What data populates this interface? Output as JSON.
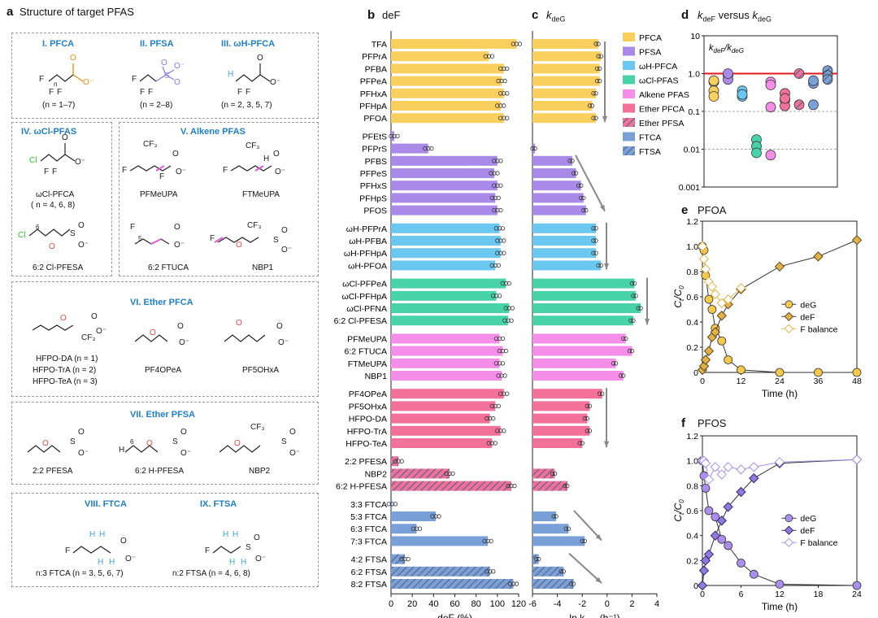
{
  "panel_a": {
    "letter": "a",
    "title": "Structure of target PFAS",
    "sections": [
      {
        "id": "I",
        "title": "I. PFCA",
        "captions": [
          "(n = 1–7)"
        ]
      },
      {
        "id": "II",
        "title": "II. PFSA",
        "captions": [
          "(n = 2–8)"
        ]
      },
      {
        "id": "III",
        "title": "III. ωH-PFCA",
        "captions": [
          "(n = 2, 3, 5, 7)"
        ]
      },
      {
        "id": "IV",
        "title": "IV. ωCl-PFAS",
        "captions": [
          "ωCl-PFCA",
          "( n = 4, 6, 8)",
          "6:2 Cl-PFESA"
        ]
      },
      {
        "id": "V",
        "title": "V. Alkene PFAS",
        "captions": [
          "PFMeUPA",
          "FTMeUPA",
          "6:2 FTUCA",
          "NBP1"
        ]
      },
      {
        "id": "VI",
        "title": "VI. Ether PFCA",
        "captions": [
          "HFPO-DA (n = 1)",
          "HFPO-TrA (n = 2)",
          "HFPO-TeA (n = 3)",
          "PF4OPeA",
          "PF5OHxA"
        ]
      },
      {
        "id": "VII",
        "title": "VII. Ether PFSA",
        "captions": [
          "2:2 PFESA",
          "6:2 H-PFESA",
          "NBP2"
        ]
      },
      {
        "id": "VIII",
        "title": "VIII. FTCA",
        "captions": [
          "n:3 FTCA (n = 3, 5, 6, 7)"
        ]
      },
      {
        "id": "IX",
        "title": "IX. FTSA",
        "captions": [
          "n:2 FTSA (n = 4, 6, 8)"
        ]
      }
    ],
    "mol_labels": {
      "F": "F",
      "O": "O",
      "S": "S",
      "H": "H",
      "Cl": "Cl",
      "CF3": "CF₃",
      "n": "n",
      "minus": "⁻",
      "six": "6",
      "five": "5"
    }
  },
  "chart_data": [
    {
      "panel": "b",
      "type": "bar",
      "title": "deF",
      "xlabel": "deF (%)",
      "xlim": [
        0,
        120
      ],
      "xticks": [
        0,
        20,
        40,
        60,
        80,
        100,
        120
      ],
      "categories": [
        "TFA",
        "PFPrA",
        "PFBA",
        "PFPeA",
        "PFHxA",
        "PFHpA",
        "PFOA",
        "PFEtS",
        "PFPrS",
        "PFBS",
        "PFPeS",
        "PFHxS",
        "PFHpS",
        "PFOS",
        "ωH-PFPrA",
        "ωH-PFBA",
        "ωH-PFHpA",
        "ωH-PFOA",
        "ωCl-PFPeA",
        "ωCl-PFHpA",
        "ωCl-PFNA",
        "6:2 Cl-PFESA",
        "PFMeUPA",
        "6:2 FTUCA",
        "FTMeUPA",
        "NBP1",
        "PF4OPeA",
        "PF5OHxA",
        "HFPO-DA",
        "HFPO-TrA",
        "HFPO-TeA",
        "2:2 PFESA",
        "NBP2",
        "6:2 H-PFESA",
        "3:3 FTCA",
        "5:3 FTCA",
        "6:3 FTCA",
        "7:3 FTCA",
        "4:2 FTSA",
        "6:2 FTSA",
        "8:2 FTSA"
      ],
      "groups": [
        "PFCA",
        "PFCA",
        "PFCA",
        "PFCA",
        "PFCA",
        "PFCA",
        "PFCA",
        "PFSA",
        "PFSA",
        "PFSA",
        "PFSA",
        "PFSA",
        "PFSA",
        "PFSA",
        "ωH-PFCA",
        "ωH-PFCA",
        "ωH-PFCA",
        "ωH-PFCA",
        "ωCl-PFAS",
        "ωCl-PFAS",
        "ωCl-PFAS",
        "ωCl-PFAS",
        "Alkene PFAS",
        "Alkene PFAS",
        "Alkene PFAS",
        "Alkene PFAS",
        "Ether PFCA",
        "Ether PFCA",
        "Ether PFCA",
        "Ether PFCA",
        "Ether PFCA",
        "Ether PFSA",
        "Ether PFSA",
        "Ether PFSA",
        "FTCA",
        "FTCA",
        "FTCA",
        "FTCA",
        "FTSA",
        "FTSA",
        "FTSA"
      ],
      "values": [
        118,
        92,
        106,
        104,
        106,
        103,
        106,
        3,
        35,
        100,
        97,
        100,
        98,
        100,
        102,
        103,
        103,
        98,
        108,
        99,
        111,
        110,
        102,
        105,
        102,
        104,
        106,
        98,
        93,
        103,
        95,
        7,
        55,
        113,
        1,
        42,
        24,
        91,
        13,
        93,
        115
      ]
    },
    {
      "panel": "c",
      "type": "bar",
      "title": "k_deG",
      "xlabel": "ln k_deG (h⁻¹)",
      "xlim": [
        -6,
        4
      ],
      "xticks": [
        -6,
        -4,
        -2,
        0,
        2,
        4
      ],
      "values": [
        -0.7,
        -0.5,
        -0.6,
        -0.6,
        -0.9,
        -1.2,
        -0.9,
        null,
        -5.8,
        -2.8,
        -2.5,
        -2.1,
        -1.9,
        -1.7,
        -0.9,
        -0.9,
        -0.9,
        -0.5,
        2.2,
        2.3,
        2.7,
        2.1,
        1.5,
        2.0,
        0.7,
        1.3,
        -0.4,
        -1.4,
        -1.6,
        -1.4,
        -2.0,
        null,
        -4.2,
        -3.2,
        null,
        -4.1,
        -3.1,
        -1.8,
        -5.5,
        -3.5,
        -2.7
      ],
      "legend": [
        "PFCA",
        "PFSA",
        "ωH-PFCA",
        "ωCl-PFAS",
        "Alkene PFAS",
        "Ether PFCA",
        "Ether PFSA",
        "FTCA",
        "FTSA"
      ],
      "colors": {
        "PFCA": "#f9cf5e",
        "PFSA": "#a98ae8",
        "ωH-PFCA": "#6ac8f0",
        "ωCl-PFAS": "#48d3a7",
        "Alkene PFAS": "#f58ee8",
        "Ether PFCA": "#f27099",
        "Ether PFSA": "#f27099",
        "FTCA": "#7aa0d8",
        "FTSA": "#7aa0d8"
      },
      "hatched": [
        "Ether PFSA",
        "FTSA"
      ]
    },
    {
      "panel": "d",
      "type": "scatter",
      "title": "k_deF versus k_deG",
      "inset_label": "k_deF/k_deG",
      "ylog": true,
      "ylim": [
        0.001,
        10
      ],
      "yticks": [
        "0.001",
        "0.01",
        "0.1",
        "1.0",
        "10"
      ],
      "reference_line": 1.0,
      "gridlines": [
        0.1,
        0.01
      ],
      "series": [
        {
          "group": "PFCA",
          "values": [
            0.6,
            0.35,
            0.25,
            0.65
          ]
        },
        {
          "group": "PFSA",
          "values": [
            0.9,
            0.7,
            1.0
          ]
        },
        {
          "group": "ωH-PFCA",
          "values": [
            0.35,
            0.25,
            0.28
          ]
        },
        {
          "group": "ωCl-PFAS",
          "values": [
            0.018,
            0.012,
            0.008
          ]
        },
        {
          "group": "Alkene PFAS",
          "values": [
            0.6,
            0.5,
            0.13,
            0.007
          ]
        },
        {
          "group": "Ether PFCA",
          "values": [
            0.3,
            0.2,
            0.14,
            0.22
          ]
        },
        {
          "group": "Ether PFSA",
          "values": [
            1.0,
            0.15
          ]
        },
        {
          "group": "FTCA",
          "values": [
            0.55,
            0.65,
            0.15
          ]
        },
        {
          "group": "FTSA",
          "values": [
            1.2,
            0.9,
            0.7
          ]
        }
      ]
    },
    {
      "panel": "e",
      "type": "line",
      "title": "PFOA",
      "ylabel": "C_t/C_0",
      "xlabel": "Time (h)",
      "xlim": [
        0,
        48
      ],
      "ylim": [
        0,
        1.2
      ],
      "xticks": [
        0,
        12,
        24,
        36,
        48
      ],
      "yticks": [
        0,
        0.2,
        0.4,
        0.6,
        0.8,
        1.0,
        1.2
      ],
      "series": [
        {
          "name": "deG",
          "x": [
            0,
            0.5,
            1,
            2,
            3,
            4,
            6,
            8,
            12,
            24,
            36,
            48
          ],
          "y": [
            1.0,
            0.97,
            0.77,
            0.58,
            0.5,
            0.35,
            0.25,
            0.1,
            0.02,
            0.0,
            0.0,
            0.0
          ]
        },
        {
          "name": "deF",
          "x": [
            0,
            0.5,
            1,
            2,
            3,
            4,
            6,
            8,
            12,
            24,
            36,
            48
          ],
          "y": [
            0.02,
            0.05,
            0.1,
            0.17,
            0.28,
            0.32,
            0.45,
            0.54,
            0.66,
            0.84,
            0.92,
            1.05
          ]
        },
        {
          "name": "F balance",
          "x": [
            0,
            0.5,
            1,
            2,
            3,
            4,
            6,
            8,
            12
          ],
          "y": [
            1.0,
            0.9,
            0.82,
            0.72,
            0.68,
            0.62,
            0.55,
            0.58,
            0.67
          ]
        }
      ]
    },
    {
      "panel": "f",
      "type": "line",
      "title": "PFOS",
      "ylabel": "C_t/C_0",
      "xlabel": "Time (h)",
      "xlim": [
        0,
        24
      ],
      "ylim": [
        0,
        1.2
      ],
      "xticks": [
        0,
        6,
        12,
        18,
        24
      ],
      "yticks": [
        0,
        0.2,
        0.4,
        0.6,
        0.8,
        1.0,
        1.2
      ],
      "series": [
        {
          "name": "deG",
          "x": [
            0,
            0.25,
            0.5,
            1,
            2,
            3,
            4,
            6,
            8,
            12,
            24
          ],
          "y": [
            1.0,
            0.88,
            0.78,
            0.6,
            0.55,
            0.37,
            0.32,
            0.18,
            0.09,
            0.01,
            0.0
          ]
        },
        {
          "name": "deF",
          "x": [
            0,
            0.25,
            0.5,
            1,
            2,
            3,
            4,
            6,
            8,
            12,
            24
          ],
          "y": [
            0.0,
            0.12,
            0.2,
            0.25,
            0.4,
            0.52,
            0.63,
            0.75,
            0.86,
            0.98,
            1.01
          ]
        },
        {
          "name": "F balance",
          "x": [
            0,
            0.25,
            0.5,
            1,
            2,
            3,
            4,
            6,
            8,
            12,
            24
          ],
          "y": [
            1.0,
            1.0,
            0.98,
            0.85,
            0.95,
            0.89,
            0.95,
            0.93,
            0.95,
            0.99,
            1.01
          ]
        }
      ]
    }
  ],
  "labels": {
    "b": "b",
    "c": "c",
    "d": "d",
    "e": "e",
    "f": "f",
    "c_title_main": "k",
    "c_title_sub": "deG",
    "d_title_k1": "k",
    "d_title_s1": "deF",
    "d_title_mid": " versus ",
    "d_title_k2": "k",
    "d_title_s2": "deG",
    "c_xlabel_main": "ln k",
    "c_xlabel_sub": "deG",
    "c_xlabel_unit": " (h⁻¹)",
    "ylabel_c": "C",
    "ylabel_t": "t",
    "ylabel_c0": "/C",
    "ylabel_0": "0"
  }
}
